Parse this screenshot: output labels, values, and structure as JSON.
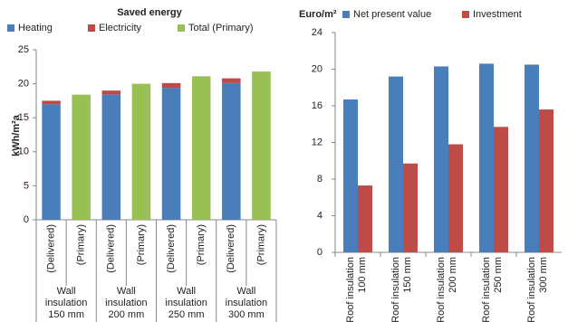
{
  "chart_data": [
    {
      "type": "stacked_bar",
      "title": "Saved energy",
      "y_label": "kWh/m²a",
      "categories": [
        "(Delivered)",
        "(Primary)",
        "(Delivered)",
        "(Primary)",
        "(Delivered)",
        "(Primary)",
        "(Delivered)",
        "(Primary)"
      ],
      "groups": [
        "Wall insulation 150 mm",
        "Wall insulation 200 mm",
        "Wall insulation 250 mm",
        "Wall insulation 300 mm"
      ],
      "series": [
        {
          "name": "Heating",
          "color": "#4a7ebb",
          "values": [
            17.0,
            null,
            18.4,
            null,
            19.4,
            null,
            20.1,
            null
          ]
        },
        {
          "name": "Electricity",
          "color": "#be4b48",
          "values": [
            0.5,
            null,
            0.6,
            null,
            0.7,
            null,
            0.7,
            null
          ]
        },
        {
          "name": "Total (Primary)",
          "color": "#98c054",
          "values": [
            null,
            18.4,
            null,
            20.0,
            null,
            21.1,
            null,
            21.8
          ]
        }
      ],
      "ylim": [
        0,
        25
      ],
      "yticks": [
        0,
        5,
        10,
        15,
        20,
        25
      ]
    },
    {
      "type": "bar",
      "y_label": "Euro/m²",
      "categories": [
        "Roof insulation 100 mm",
        "Roof insulation 150 mm",
        "Roof insulation 200 mm",
        "Roof insulation 250 mm",
        "Roof insulation 300 mm"
      ],
      "series": [
        {
          "name": "Net present value",
          "color": "#4a7ebb",
          "values": [
            16.7,
            19.2,
            20.3,
            20.6,
            20.5
          ]
        },
        {
          "name": "Investment",
          "color": "#be4b48",
          "values": [
            7.3,
            9.7,
            11.8,
            13.7,
            15.6
          ]
        }
      ],
      "ylim": [
        0,
        24
      ],
      "yticks": [
        0,
        4,
        8,
        12,
        16,
        20,
        24
      ]
    }
  ]
}
